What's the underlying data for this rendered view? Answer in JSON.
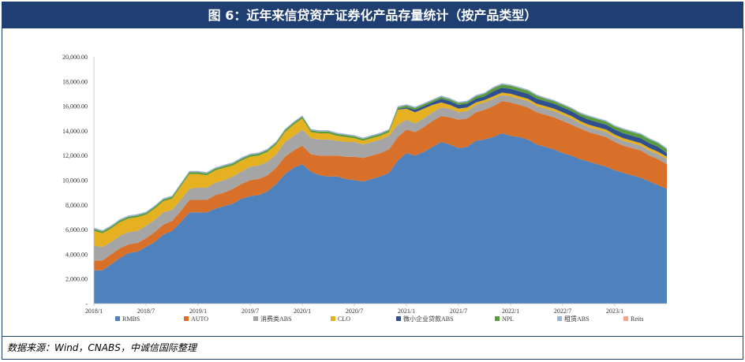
{
  "title": "图 6：近年来信贷资产证券化产品存量统计（按产品类型）",
  "source": "数据来源：Wind，CNABS，中诚信国际整理",
  "chart_data": {
    "type": "area",
    "stacked": true,
    "ylim": [
      0,
      20000
    ],
    "yticks": [
      "-",
      "2,000.00",
      "4,000.00",
      "6,000.00",
      "8,000.00",
      "10,000.00",
      "12,000.00",
      "14,000.00",
      "16,000.00",
      "18,000.00",
      "20,000.00"
    ],
    "xtick_labels": [
      {
        "i": 0,
        "label": "2018/1"
      },
      {
        "i": 6,
        "label": "2018/7"
      },
      {
        "i": 12,
        "label": "2019/1"
      },
      {
        "i": 18,
        "label": "2019/7"
      },
      {
        "i": 24,
        "label": "2020/1"
      },
      {
        "i": 30,
        "label": "2020/7"
      },
      {
        "i": 36,
        "label": "2021/1"
      },
      {
        "i": 42,
        "label": "2021/7"
      },
      {
        "i": 48,
        "label": "2022/1"
      },
      {
        "i": 54,
        "label": "2022/7"
      },
      {
        "i": 60,
        "label": "2023/1"
      }
    ],
    "n_points": 67,
    "series": [
      {
        "name": "RMBS",
        "color": "#4f81bd",
        "values": [
          2700,
          2700,
          3200,
          3700,
          4100,
          4200,
          4600,
          5000,
          5600,
          5900,
          6600,
          7400,
          7400,
          7400,
          7700,
          7900,
          8100,
          8500,
          8700,
          8800,
          9100,
          9700,
          10500,
          11000,
          11300,
          10700,
          10400,
          10300,
          10300,
          10100,
          10000,
          9900,
          10100,
          10300,
          10600,
          11600,
          12200,
          12000,
          12300,
          12700,
          13100,
          12900,
          12600,
          12700,
          13200,
          13300,
          13500,
          13800,
          13600,
          13500,
          13300,
          12900,
          12700,
          12500,
          12200,
          12000,
          11700,
          11500,
          11300,
          11100,
          10800,
          10600,
          10400,
          10200,
          9900,
          9600,
          9300
        ]
      },
      {
        "name": "AUTO",
        "color": "#d8702a",
        "values": [
          800,
          800,
          800,
          800,
          700,
          700,
          700,
          800,
          800,
          800,
          900,
          1000,
          1000,
          1000,
          1100,
          1100,
          1200,
          1200,
          1300,
          1300,
          1300,
          1300,
          1400,
          1400,
          1500,
          1400,
          1600,
          1700,
          1700,
          1800,
          1900,
          1900,
          1900,
          1900,
          1900,
          1900,
          1900,
          1900,
          2000,
          2100,
          2100,
          2200,
          2300,
          2300,
          2300,
          2400,
          2500,
          2600,
          2700,
          2600,
          2600,
          2600,
          2600,
          2600,
          2600,
          2500,
          2500,
          2400,
          2400,
          2400,
          2300,
          2200,
          2200,
          2200,
          2100,
          2100,
          2000
        ]
      },
      {
        "name": "消费类ABS",
        "color": "#a5a5a5",
        "values": [
          1200,
          1100,
          1000,
          1000,
          1000,
          1000,
          1000,
          1000,
          1000,
          900,
          900,
          900,
          1000,
          1000,
          1000,
          1000,
          1000,
          1000,
          1100,
          1100,
          1100,
          1100,
          1200,
          1200,
          1300,
          1300,
          1300,
          1300,
          1200,
          1200,
          1200,
          1100,
          1100,
          1100,
          1100,
          1000,
          800,
          700,
          700,
          700,
          700,
          700,
          600,
          600,
          600,
          600,
          600,
          500,
          500,
          500,
          500,
          500,
          500,
          500,
          500,
          500,
          400,
          400,
          400,
          400,
          400,
          400,
          400,
          400,
          400,
          400,
          400
        ]
      },
      {
        "name": "CLO",
        "color": "#e5b120",
        "values": [
          1200,
          1100,
          1100,
          1100,
          1100,
          1100,
          900,
          900,
          900,
          900,
          1100,
          1200,
          1100,
          1000,
          1000,
          1000,
          900,
          900,
          800,
          800,
          800,
          800,
          800,
          900,
          900,
          500,
          500,
          500,
          400,
          400,
          300,
          300,
          300,
          300,
          300,
          1200,
          900,
          900,
          800,
          600,
          400,
          300,
          300,
          300,
          200,
          200,
          200,
          200,
          200,
          200,
          200,
          200,
          200,
          200,
          200,
          200,
          200,
          200,
          200,
          200,
          200,
          200,
          200,
          200,
          200,
          200,
          200
        ]
      },
      {
        "name": "微小企业贷款ABS",
        "color": "#2f4f8f",
        "values": [
          0,
          0,
          0,
          0,
          0,
          0,
          0,
          0,
          0,
          0,
          0,
          0,
          0,
          0,
          0,
          0,
          0,
          0,
          0,
          0,
          0,
          0,
          0,
          0,
          0,
          0,
          0,
          0,
          0,
          0,
          0,
          0,
          0,
          0,
          0,
          50,
          100,
          200,
          200,
          200,
          300,
          300,
          300,
          300,
          300,
          300,
          400,
          400,
          400,
          400,
          400,
          400,
          400,
          400,
          400,
          400,
          400,
          400,
          400,
          400,
          400,
          400,
          400,
          400,
          400,
          400,
          300
        ]
      },
      {
        "name": "NPL",
        "color": "#5a9b3c",
        "values": [
          150,
          150,
          150,
          150,
          150,
          150,
          150,
          150,
          150,
          150,
          150,
          150,
          150,
          150,
          150,
          150,
          150,
          150,
          150,
          150,
          150,
          150,
          150,
          150,
          150,
          150,
          150,
          150,
          150,
          150,
          150,
          150,
          150,
          150,
          150,
          150,
          150,
          150,
          150,
          150,
          150,
          150,
          150,
          150,
          200,
          200,
          250,
          250,
          250,
          250,
          250,
          250,
          200,
          200,
          200,
          200,
          200,
          250,
          250,
          250,
          250,
          300,
          300,
          300,
          300,
          300,
          300
        ]
      },
      {
        "name": "租赁ABS",
        "color": "#9db3d6",
        "values": [
          100,
          100,
          100,
          100,
          100,
          100,
          100,
          100,
          100,
          100,
          100,
          100,
          100,
          100,
          100,
          100,
          100,
          100,
          100,
          100,
          100,
          100,
          100,
          100,
          100,
          100,
          100,
          100,
          100,
          100,
          100,
          100,
          100,
          100,
          100,
          100,
          100,
          100,
          100,
          100,
          100,
          100,
          100,
          100,
          100,
          100,
          100,
          100,
          100,
          100,
          100,
          100,
          100,
          100,
          100,
          100,
          100,
          100,
          100,
          100,
          100,
          100,
          100,
          100,
          100,
          100,
          100
        ]
      },
      {
        "name": "Reits",
        "color": "#f2a48f",
        "values": [
          0,
          0,
          0,
          0,
          0,
          0,
          0,
          0,
          0,
          0,
          0,
          0,
          0,
          0,
          0,
          0,
          0,
          0,
          0,
          0,
          0,
          0,
          0,
          0,
          0,
          0,
          0,
          0,
          0,
          0,
          0,
          0,
          0,
          0,
          0,
          0,
          0,
          0,
          0,
          0,
          0,
          0,
          0,
          0,
          0,
          0,
          0,
          0,
          0,
          0,
          0,
          0,
          0,
          0,
          0,
          0,
          0,
          0,
          0,
          0,
          0,
          0,
          0,
          0,
          0,
          0,
          0
        ]
      }
    ]
  }
}
